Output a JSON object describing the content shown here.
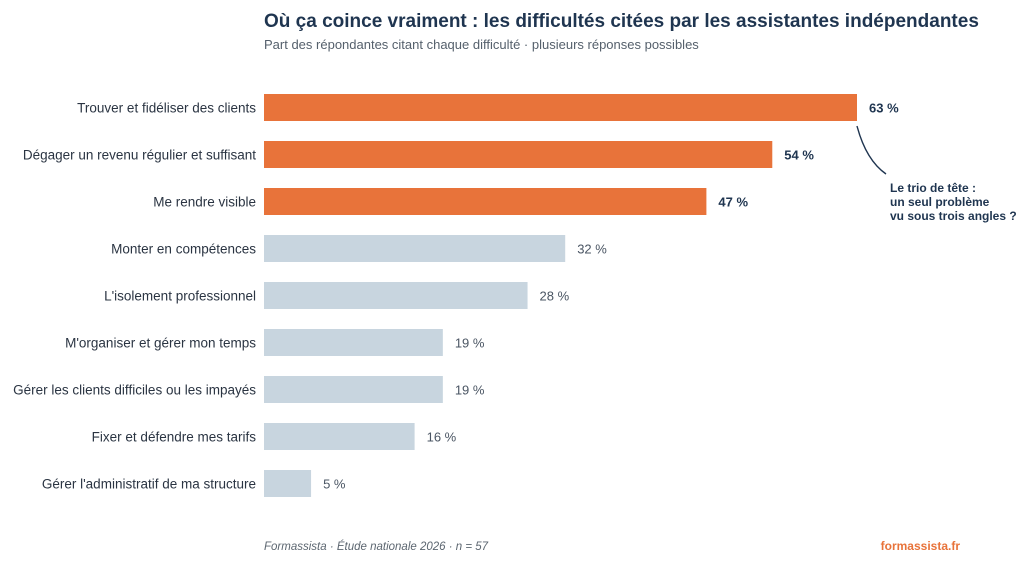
{
  "chart_data": {
    "type": "bar",
    "orientation": "horizontal",
    "title": "Où ça coince vraiment : les difficultés citées par les assistantes indépendantes",
    "subtitle": "Part des répondantes citant chaque difficulté · plusieurs réponses possibles",
    "categories": [
      "Trouver et fidéliser des clients",
      "Dégager un revenu régulier et suffisant",
      "Me rendre visible",
      "Monter en compétences",
      "L'isolement professionnel",
      "M'organiser et gérer mon temps",
      "Gérer les clients difficiles ou les impayés",
      "Fixer et défendre mes tarifs",
      "Gérer l'administratif de ma structure"
    ],
    "values": [
      63,
      54,
      47,
      32,
      28,
      19,
      19,
      16,
      5
    ],
    "value_labels": [
      "63 %",
      "54 %",
      "47 %",
      "32 %",
      "28 %",
      "19 %",
      "19 %",
      "16 %",
      "5 %"
    ],
    "highlighted_count": 3,
    "xlim": [
      0,
      63
    ],
    "grid": false,
    "annotation": {
      "lines": [
        "Le trio de tête :",
        "un seul problème",
        "vu sous trois angles ?"
      ]
    }
  },
  "footer": {
    "source": "Formassista · Étude nationale 2026 · n = 57",
    "brand": "formassista.fr"
  },
  "colors": {
    "highlight": "#e8733a",
    "base": "#c8d5df",
    "title": "#1f3550",
    "brand": "#e8733a"
  }
}
